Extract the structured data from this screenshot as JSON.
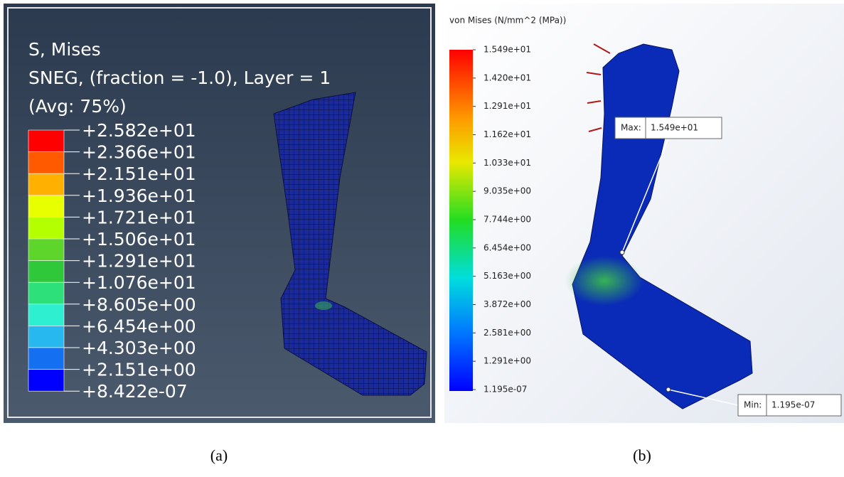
{
  "panel_a": {
    "title_lines": [
      "S, Mises",
      "SNEG, (fraction = -1.0), Layer = 1",
      "(Avg: 75%)"
    ],
    "legend_labels": [
      "+2.582e+01",
      "+2.366e+01",
      "+2.151e+01",
      "+1.936e+01",
      "+1.721e+01",
      "+1.506e+01",
      "+1.291e+01",
      "+1.076e+01",
      "+8.605e+00",
      "+6.454e+00",
      "+4.303e+00",
      "+2.151e+00",
      "+8.422e-07"
    ],
    "caption": "(a)"
  },
  "panel_b": {
    "title": "von Mises (N/mm^2 (MPa))",
    "legend_labels": [
      "1.549e+01",
      "1.420e+01",
      "1.291e+01",
      "1.162e+01",
      "1.033e+01",
      "9.035e+00",
      "7.744e+00",
      "6.454e+00",
      "5.163e+00",
      "3.872e+00",
      "2.581e+00",
      "1.291e+00",
      "1.195e-07"
    ],
    "max_label": "Max:",
    "max_value": "1.549e+01",
    "min_label": "Min:",
    "min_value": "1.195e-07",
    "caption": "(b)"
  }
}
